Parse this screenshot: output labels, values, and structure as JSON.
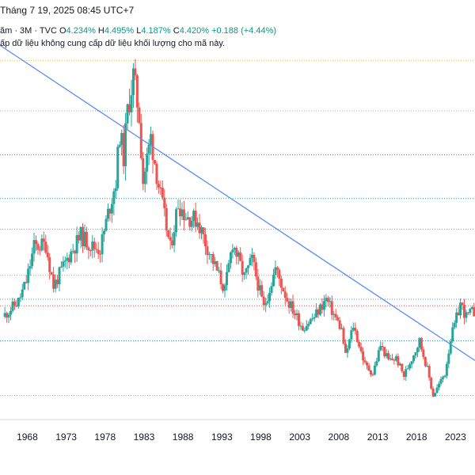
{
  "header": {
    "title_fragment": "Tháng 7 19, 2025 08:45 UTC+7"
  },
  "legend": {
    "symbol_fragment": "ăm · 3M · TVC",
    "open_label": "O",
    "open_value": "4.234%",
    "high_label": "H",
    "high_value": "4.495%",
    "low_label": "L",
    "low_value": "4.187%",
    "close_label": "C",
    "close_value": "4.420%",
    "change": "+0.188 (+4.44%)"
  },
  "notice": "ấp dữ liệu không cung cấp dữ liệu khối lượng cho mã này.",
  "colors": {
    "up": "#26a69a",
    "down": "#ef5350",
    "trendline": "#5b8def",
    "axis": "#d1d4dc"
  },
  "chart_data": {
    "type": "candlestick",
    "x_ticks": [
      "1968",
      "1973",
      "1978",
      "1983",
      "1988",
      "1993",
      "1998",
      "2003",
      "2008",
      "2013",
      "2018",
      "2023"
    ],
    "x_range": [
      1964.5,
      2025.5
    ],
    "y_range": [
      -0.5,
      16.5
    ],
    "anchors": [
      [
        1965.0,
        4.2
      ],
      [
        1967.0,
        4.9
      ],
      [
        1968.0,
        5.8
      ],
      [
        1969.0,
        7.4
      ],
      [
        1970.5,
        7.5
      ],
      [
        1971.5,
        5.6
      ],
      [
        1972.5,
        6.3
      ],
      [
        1973.5,
        7.0
      ],
      [
        1975.0,
        7.9
      ],
      [
        1976.5,
        7.4
      ],
      [
        1977.5,
        7.3
      ],
      [
        1978.5,
        8.9
      ],
      [
        1979.5,
        10.4
      ],
      [
        1980.0,
        12.6
      ],
      [
        1980.5,
        11.5
      ],
      [
        1981.0,
        13.6
      ],
      [
        1981.75,
        15.2
      ],
      [
        1982.5,
        13.4
      ],
      [
        1983.0,
        10.4
      ],
      [
        1984.0,
        12.4
      ],
      [
        1985.0,
        10.2
      ],
      [
        1986.5,
        7.3
      ],
      [
        1987.5,
        9.4
      ],
      [
        1988.5,
        8.8
      ],
      [
        1990.0,
        8.6
      ],
      [
        1991.0,
        7.6
      ],
      [
        1993.5,
        5.4
      ],
      [
        1994.5,
        7.6
      ],
      [
        1996.0,
        6.0
      ],
      [
        1997.0,
        6.8
      ],
      [
        1998.5,
        4.6
      ],
      [
        2000.0,
        6.4
      ],
      [
        2001.5,
        5.0
      ],
      [
        2003.5,
        3.7
      ],
      [
        2005.0,
        4.2
      ],
      [
        2006.5,
        5.0
      ],
      [
        2008.5,
        3.6
      ],
      [
        2009.0,
        2.4
      ],
      [
        2010.0,
        3.8
      ],
      [
        2011.5,
        2.0
      ],
      [
        2012.5,
        1.6
      ],
      [
        2013.5,
        2.9
      ],
      [
        2014.5,
        2.2
      ],
      [
        2015.5,
        2.3
      ],
      [
        2016.5,
        1.5
      ],
      [
        2018.5,
        3.1
      ],
      [
        2019.5,
        1.8
      ],
      [
        2020.25,
        0.6
      ],
      [
        2021.0,
        1.1
      ],
      [
        2021.75,
        1.6
      ],
      [
        2022.5,
        3.2
      ],
      [
        2023.0,
        3.8
      ],
      [
        2023.75,
        4.8
      ],
      [
        2024.5,
        4.2
      ],
      [
        2025.25,
        4.4
      ]
    ],
    "horizontal_levels": [
      {
        "value": 15.9,
        "color": "#e6c84a"
      },
      {
        "value": 13.6,
        "color": "#9ea3ad"
      },
      {
        "value": 11.6,
        "color": "#26a69a"
      },
      {
        "value": 9.6,
        "color": "#26a69a"
      },
      {
        "value": 8.2,
        "color": "#8bc34a"
      },
      {
        "value": 6.1,
        "color": "#f5a623"
      },
      {
        "value": 5.0,
        "color": "#5b9bd5"
      },
      {
        "value": 4.7,
        "color": "#ef5350"
      },
      {
        "value": 3.1,
        "color": "#26a69a"
      },
      {
        "value": 0.6,
        "color": "#9ea3ad"
      }
    ],
    "trendline": {
      "from": [
        1964.5,
        16.6
      ],
      "to": [
        2025.5,
        2.2
      ]
    }
  }
}
